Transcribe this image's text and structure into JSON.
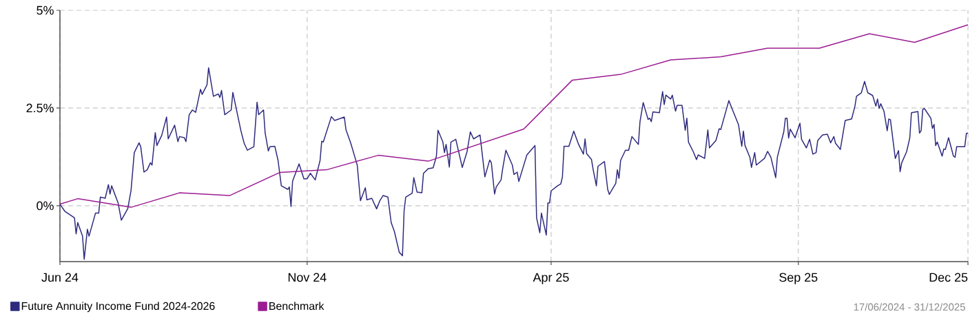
{
  "chart_data": {
    "type": "line",
    "xlim": [
      "2024-06-17",
      "2025-12-31"
    ],
    "xticks": [
      {
        "value": "2024-06-17",
        "label": "Jun 24"
      },
      {
        "value": "2024-11-17",
        "label": "Nov 24"
      },
      {
        "value": "2025-04-17",
        "label": "Apr 25"
      },
      {
        "value": "2025-09-17",
        "label": "Sep 25"
      },
      {
        "value": "2025-12-31",
        "label": "Dec 25"
      }
    ],
    "ylim": [
      -1.43,
      5
    ],
    "yticks": [
      {
        "value": 0,
        "label": "0%"
      },
      {
        "value": 2.5,
        "label": "2.5%"
      },
      {
        "value": 5,
        "label": "5%"
      }
    ],
    "grid": true,
    "legend": "bottom",
    "marker": "none",
    "line_style": "solid",
    "annotations": [
      "17/06/2024 - 31/12/2025"
    ],
    "series": [
      {
        "name": "Future Annuity Income Fund 2024-2026",
        "color": "#2e2a7e",
        "x": [
          "2024-06-17",
          "2024-06-20",
          "2024-06-26",
          "2024-06-27",
          "2024-06-28",
          "2024-07-01",
          "2024-07-02",
          "2024-07-04",
          "2024-07-05",
          "2024-07-09",
          "2024-07-11",
          "2024-07-12",
          "2024-07-15",
          "2024-07-17",
          "2024-07-18",
          "2024-07-19",
          "2024-07-23",
          "2024-07-25",
          "2024-07-29",
          "2024-07-31",
          "2024-08-02",
          "2024-08-05",
          "2024-08-06",
          "2024-08-08",
          "2024-08-10",
          "2024-08-12",
          "2024-08-13",
          "2024-08-15",
          "2024-08-16",
          "2024-08-19",
          "2024-08-22",
          "2024-08-23",
          "2024-08-27",
          "2024-08-29",
          "2024-08-30",
          "2024-09-02",
          "2024-09-03",
          "2024-09-05",
          "2024-09-07",
          "2024-09-09",
          "2024-09-12",
          "2024-09-13",
          "2024-09-16",
          "2024-09-17",
          "2024-09-20",
          "2024-09-23",
          "2024-09-24",
          "2024-09-25",
          "2024-09-27",
          "2024-10-01",
          "2024-10-02",
          "2024-10-04",
          "2024-10-07",
          "2024-10-09",
          "2024-10-11",
          "2024-10-15",
          "2024-10-17",
          "2024-10-18",
          "2024-10-21",
          "2024-10-22",
          "2024-10-24",
          "2024-10-25",
          "2024-10-28",
          "2024-10-30",
          "2024-11-01",
          "2024-11-05",
          "2024-11-06",
          "2024-11-07",
          "2024-11-08",
          "2024-11-12",
          "2024-11-15",
          "2024-11-17",
          "2024-11-19",
          "2024-11-22",
          "2024-11-25",
          "2024-11-26",
          "2024-11-27",
          "2024-12-02",
          "2024-12-04",
          "2024-12-10",
          "2024-12-11",
          "2024-12-14",
          "2024-12-17",
          "2024-12-18",
          "2024-12-20",
          "2024-12-23",
          "2024-12-24",
          "2024-12-27",
          "2024-12-30",
          "2025-01-01",
          "2025-01-03",
          "2025-01-06",
          "2025-01-08",
          "2025-01-10",
          "2025-01-13",
          "2025-01-15",
          "2025-01-16",
          "2025-01-17",
          "2025-01-21",
          "2025-01-22",
          "2025-01-24",
          "2025-01-27",
          "2025-01-28",
          "2025-01-31",
          "2025-02-03",
          "2025-02-05",
          "2025-02-06",
          "2025-02-09",
          "2025-02-10",
          "2025-02-11",
          "2025-02-13",
          "2025-02-14",
          "2025-02-17",
          "2025-02-21",
          "2025-02-24",
          "2025-02-26",
          "2025-02-28",
          "2025-03-04",
          "2025-03-07",
          "2025-03-10",
          "2025-03-11",
          "2025-03-13",
          "2025-03-14",
          "2025-03-17",
          "2025-03-18",
          "2025-03-20",
          "2025-03-24",
          "2025-03-25",
          "2025-03-27",
          "2025-03-28",
          "2025-04-02",
          "2025-04-07",
          "2025-04-08",
          "2025-04-10",
          "2025-04-11",
          "2025-04-14",
          "2025-04-15",
          "2025-04-16",
          "2025-04-17",
          "2025-04-21",
          "2025-04-23",
          "2025-04-24",
          "2025-04-25",
          "2025-04-28",
          "2025-05-01",
          "2025-05-04",
          "2025-05-07",
          "2025-05-08",
          "2025-05-09",
          "2025-05-12",
          "2025-05-13",
          "2025-05-15",
          "2025-05-16",
          "2025-05-20",
          "2025-05-22",
          "2025-05-23",
          "2025-05-27",
          "2025-05-28",
          "2025-05-29",
          "2025-05-30",
          "2025-06-02",
          "2025-06-04",
          "2025-06-06",
          "2025-06-10",
          "2025-06-11",
          "2025-06-13",
          "2025-06-16",
          "2025-06-17",
          "2025-06-18",
          "2025-06-19",
          "2025-06-23",
          "2025-06-25",
          "2025-06-26",
          "2025-06-27",
          "2025-06-30",
          "2025-07-01",
          "2025-07-03",
          "2025-07-04",
          "2025-07-07",
          "2025-07-09",
          "2025-07-10",
          "2025-07-11",
          "2025-07-14",
          "2025-07-16",
          "2025-07-17",
          "2025-07-21",
          "2025-07-23",
          "2025-07-24",
          "2025-07-28",
          "2025-07-30",
          "2025-07-31",
          "2025-08-05",
          "2025-08-07",
          "2025-08-11",
          "2025-08-13",
          "2025-08-14",
          "2025-08-15",
          "2025-08-18",
          "2025-08-19",
          "2025-08-21",
          "2025-08-22",
          "2025-08-27",
          "2025-08-29",
          "2025-08-31",
          "2025-09-03",
          "2025-09-04",
          "2025-09-08",
          "2025-09-09",
          "2025-09-10",
          "2025-09-11",
          "2025-09-12",
          "2025-09-15",
          "2025-09-18",
          "2025-09-19",
          "2025-09-22",
          "2025-09-24",
          "2025-09-26",
          "2025-09-28",
          "2025-09-29",
          "2025-10-02",
          "2025-10-05",
          "2025-10-07",
          "2025-10-09",
          "2025-10-10",
          "2025-10-13",
          "2025-10-16",
          "2025-10-20",
          "2025-10-22",
          "2025-10-23",
          "2025-10-26",
          "2025-10-28",
          "2025-10-30",
          "2025-11-02",
          "2025-11-04",
          "2025-11-05",
          "2025-11-06",
          "2025-11-07",
          "2025-11-09",
          "2025-11-11",
          "2025-11-12",
          "2025-11-13",
          "2025-11-16",
          "2025-11-18",
          "2025-11-19",
          "2025-11-20",
          "2025-11-23",
          "2025-11-25",
          "2025-11-26",
          "2025-11-30",
          "2025-12-01",
          "2025-12-02",
          "2025-12-03",
          "2025-12-04",
          "2025-12-08",
          "2025-12-09",
          "2025-12-10",
          "2025-12-11",
          "2025-12-12",
          "2025-12-15",
          "2025-12-16",
          "2025-12-17",
          "2025-12-19",
          "2025-12-22",
          "2025-12-23",
          "2025-12-24",
          "2025-12-29",
          "2025-12-30",
          "2025-12-31"
        ],
        "values": [
          0.04,
          -0.14,
          -0.31,
          -0.72,
          -0.43,
          -0.78,
          -1.37,
          -0.6,
          -0.78,
          -0.19,
          -0.19,
          0.22,
          0.19,
          0.54,
          0.3,
          0.51,
          0.07,
          -0.37,
          -0.07,
          0.39,
          1.36,
          1.61,
          1.51,
          0.86,
          0.92,
          1.1,
          1.04,
          1.87,
          1.54,
          1.8,
          2.27,
          1.71,
          2.06,
          1.64,
          1.77,
          1.74,
          1.64,
          2.33,
          2.45,
          2.39,
          2.98,
          2.85,
          3.09,
          3.53,
          2.8,
          2.86,
          2.77,
          2.95,
          2.33,
          2.45,
          2.9,
          2.51,
          1.92,
          1.6,
          1.42,
          1.51,
          2.65,
          2.33,
          2.45,
          1.86,
          1.4,
          1.51,
          1.52,
          1.16,
          0.51,
          0.42,
          0.48,
          -0.02,
          0.63,
          1.07,
          0.69,
          0.69,
          0.83,
          0.66,
          1.16,
          1.65,
          1.63,
          2.28,
          2.18,
          2.27,
          1.95,
          1.6,
          1.18,
          1.04,
          0.13,
          0.46,
          0.15,
          0.19,
          -0.08,
          0.13,
          0.26,
          0.22,
          -0.43,
          -0.66,
          -1.19,
          -1.28,
          -0.14,
          0.22,
          0.32,
          0.72,
          0.35,
          0.33,
          0.83,
          0.95,
          0.97,
          1.27,
          1.93,
          1.63,
          1.36,
          1.57,
          0.99,
          1.63,
          1.7,
          0.98,
          1.39,
          1.89,
          1.71,
          1.81,
          0.74,
          1.17,
          1.1,
          0.3,
          0.48,
          0.66,
          0.94,
          1.42,
          1.04,
          0.8,
          0.86,
          0.62,
          1.3,
          1.54,
          -0.31,
          -0.69,
          -0.19,
          -0.75,
          0.07,
          0.07,
          0.38,
          0.51,
          0.56,
          0.74,
          1.52,
          1.52,
          1.91,
          1.57,
          1.32,
          1.71,
          1.33,
          1.18,
          0.93,
          0.51,
          1.01,
          1.13,
          0.42,
          0.29,
          0.57,
          0.92,
          0.7,
          1.16,
          1.42,
          1.42,
          1.77,
          1.57,
          2.15,
          2.64,
          2.21,
          2.24,
          2.15,
          2.4,
          2.38,
          2.92,
          2.59,
          2.83,
          2.73,
          2.83,
          2.42,
          2.57,
          2.57,
          1.93,
          2.24,
          1.63,
          1.38,
          1.18,
          1.3,
          1.21,
          1.94,
          1.48,
          1.67,
          1.97,
          1.95,
          2.69,
          2.48,
          2.07,
          1.52,
          1.91,
          1.54,
          1.24,
          0.98,
          1.36,
          1.04,
          1.21,
          1.39,
          1.24,
          0.72,
          1.24,
          1.89,
          2.24,
          2.24,
          1.73,
          1.96,
          1.74,
          2.11,
          1.7,
          1.48,
          1.7,
          1.32,
          1.36,
          1.67,
          1.81,
          1.83,
          1.61,
          1.77,
          1.6,
          1.44,
          2.18,
          2.22,
          2.54,
          2.8,
          2.89,
          3.18,
          2.89,
          2.82,
          2.55,
          2.73,
          2.49,
          2.61,
          2.42,
          1.92,
          2.22,
          2.2,
          1.21,
          1.41,
          0.87,
          1.1,
          1.38,
          1.74,
          2.38,
          2.41,
          1.86,
          1.92,
          2.46,
          2.49,
          2.24,
          1.98,
          2.08,
          1.54,
          1.63,
          1.27,
          1.45,
          1.44,
          1.74,
          1.27,
          1.24,
          1.51,
          1.51,
          1.85,
          1.86
        ]
      },
      {
        "name": "Benchmark",
        "color": "#9b1c93",
        "x": [
          "2024-06-17",
          "2024-06-28",
          "2024-07-31",
          "2024-08-30",
          "2024-09-30",
          "2024-10-31",
          "2024-11-29",
          "2024-12-31",
          "2025-01-31",
          "2025-03-31",
          "2025-04-30",
          "2025-05-30",
          "2025-06-30",
          "2025-07-31",
          "2025-08-29",
          "2025-09-30",
          "2025-10-31",
          "2025-11-28",
          "2025-12-31"
        ],
        "values": [
          0.04,
          0.18,
          -0.04,
          0.33,
          0.26,
          0.85,
          0.92,
          1.29,
          1.14,
          1.96,
          3.21,
          3.36,
          3.73,
          3.81,
          4.03,
          4.03,
          4.4,
          4.18,
          4.63
        ]
      }
    ]
  }
}
